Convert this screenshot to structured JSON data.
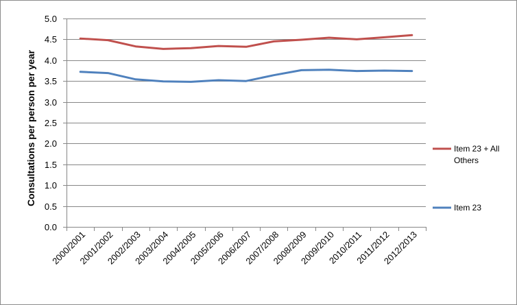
{
  "colors": {
    "item23_all_others": "#c0504d",
    "item23": "#4f81bd",
    "gridline": "#868686",
    "axis": "#868686"
  },
  "chart_data": {
    "type": "line",
    "title": "",
    "xlabel": "",
    "ylabel": "Consultations per person per year",
    "ylim": [
      0.0,
      5.0
    ],
    "y_ticks": [
      "0.0",
      "0.5",
      "1.0",
      "1.5",
      "2.0",
      "2.5",
      "3.0",
      "3.5",
      "4.0",
      "4.5",
      "5.0"
    ],
    "grid": true,
    "legend_position": "right",
    "categories": [
      "2000/2001",
      "2001/2002",
      "2002/2003",
      "2003/2004",
      "2004/2005",
      "2005/2006",
      "2006/2007",
      "2007/2008",
      "2008/2009",
      "2009/2010",
      "2010/2011",
      "2011/2012",
      "2012/2013"
    ],
    "series": [
      {
        "name": "Item 23 + All Others",
        "legend_lines": [
          "Item 23 + All",
          "Others"
        ],
        "color": "#c0504d",
        "values": [
          4.52,
          4.48,
          4.33,
          4.27,
          4.29,
          4.34,
          4.32,
          4.45,
          4.49,
          4.54,
          4.5,
          4.55,
          4.6
        ]
      },
      {
        "name": "Item 23",
        "legend_lines": [
          "Item 23"
        ],
        "color": "#4f81bd",
        "values": [
          3.72,
          3.69,
          3.54,
          3.49,
          3.48,
          3.52,
          3.5,
          3.64,
          3.76,
          3.77,
          3.74,
          3.75,
          3.74
        ]
      }
    ]
  }
}
